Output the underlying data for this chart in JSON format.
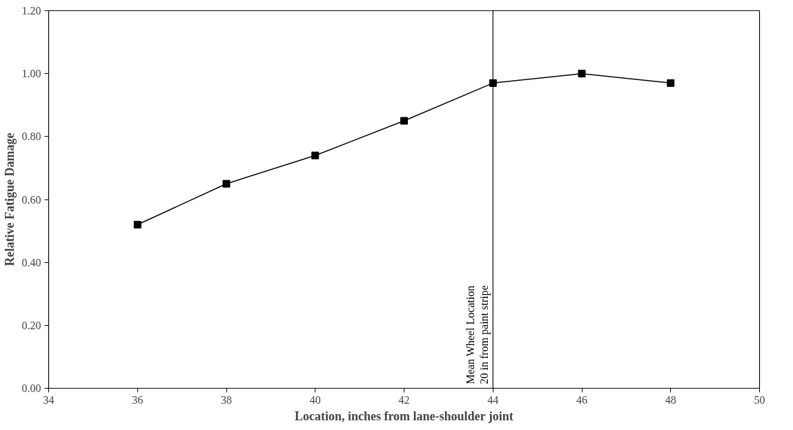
{
  "chart_data": {
    "type": "line",
    "xlabel": "Location, inches from lane-shoulder joint",
    "ylabel": "Relative Fatigue Damage",
    "x": [
      36,
      38,
      40,
      42,
      44,
      46,
      48
    ],
    "series": [
      {
        "color": "#000000",
        "values": [
          0.52,
          0.65,
          0.74,
          0.85,
          0.97,
          1.0,
          0.97
        ]
      }
    ],
    "xlim": [
      34,
      50
    ],
    "xticks": [
      34,
      36,
      38,
      40,
      42,
      44,
      46,
      48,
      50
    ],
    "ylim": [
      0,
      1.2
    ],
    "yticks": [
      {
        "value": 0,
        "label": "0.00"
      },
      {
        "value": 0.2,
        "label": "0.20"
      },
      {
        "value": 0.4,
        "label": "0.40"
      },
      {
        "value": 0.6,
        "label": "0.60"
      },
      {
        "value": 0.8,
        "label": "0.80"
      },
      {
        "value": 1.0,
        "label": "1.00"
      },
      {
        "value": 1.2,
        "label": "1.20"
      }
    ],
    "ref_lines": [
      {
        "axis": "x",
        "value": 44,
        "label": "Mean Wheel Location\n20 in from paint stripe",
        "color": "#000000"
      }
    ],
    "marker": "square",
    "line_style": "solid",
    "grid": false
  }
}
